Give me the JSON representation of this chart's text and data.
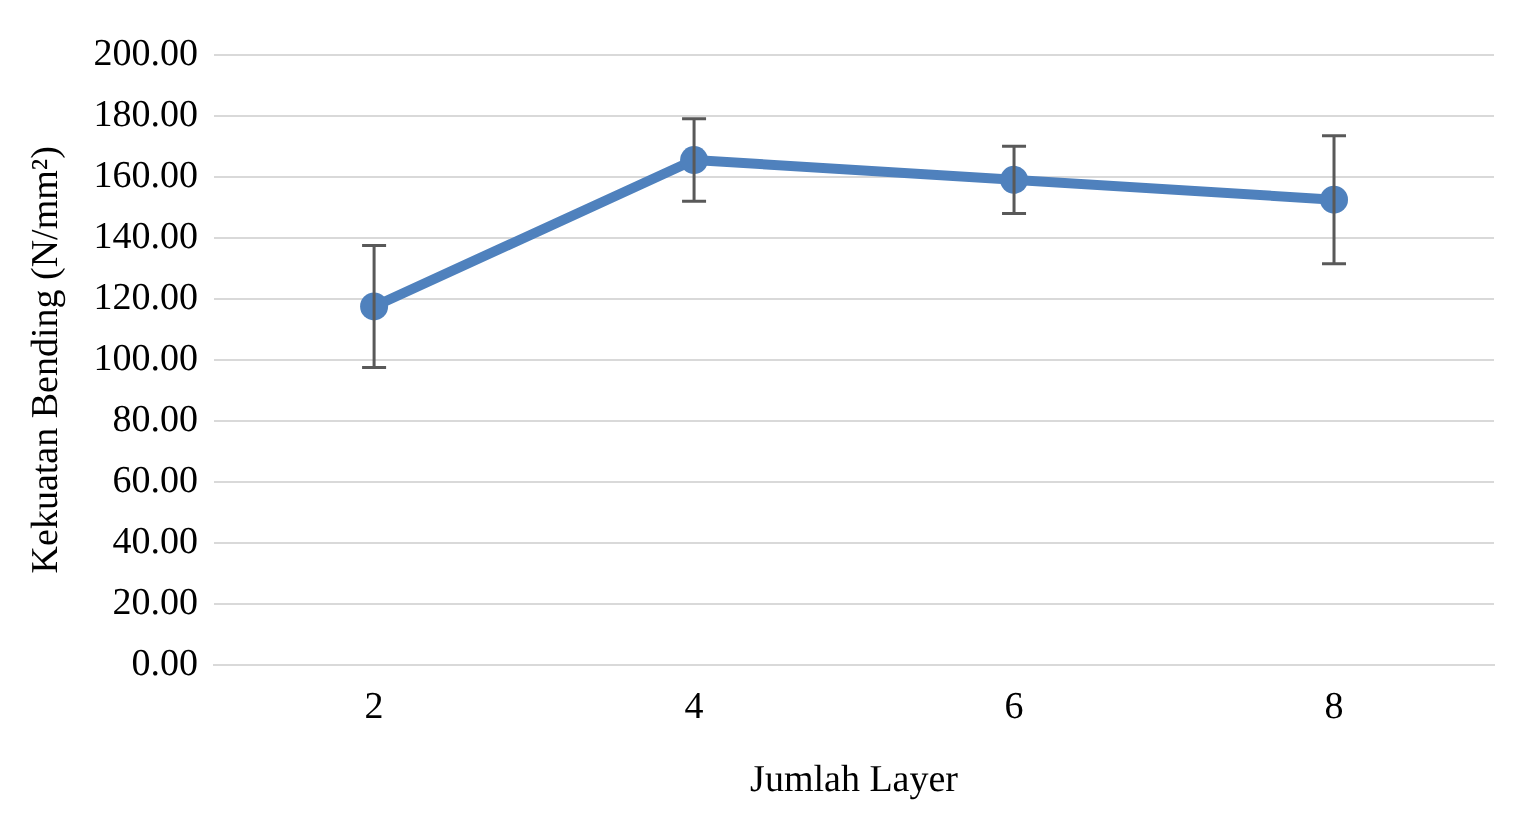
{
  "chart_data": {
    "type": "line",
    "xlabel": "Jumlah Layer",
    "ylabel": "Kekuatan Bending (N/mm²)",
    "categories": [
      "2",
      "4",
      "6",
      "8"
    ],
    "series": [
      {
        "color": "#4f81bd",
        "values": [
          117.5,
          165.5,
          159,
          152.5
        ],
        "errors": [
          20,
          13.5,
          11,
          21
        ]
      }
    ],
    "ylim": [
      0,
      200
    ],
    "yticks": [
      {
        "value": 0,
        "label": "0.00"
      },
      {
        "value": 20,
        "label": "20.00"
      },
      {
        "value": 40,
        "label": "40.00"
      },
      {
        "value": 60,
        "label": "60.00"
      },
      {
        "value": 80,
        "label": "80.00"
      },
      {
        "value": 100,
        "label": "100.00"
      },
      {
        "value": 120,
        "label": "120.00"
      },
      {
        "value": 140,
        "label": "140.00"
      },
      {
        "value": 160,
        "label": "160.00"
      },
      {
        "value": 180,
        "label": "180.00"
      },
      {
        "value": 200,
        "label": "200.00"
      }
    ],
    "grid": "y",
    "marker": "circle",
    "line_style": "solid",
    "legend": false
  }
}
